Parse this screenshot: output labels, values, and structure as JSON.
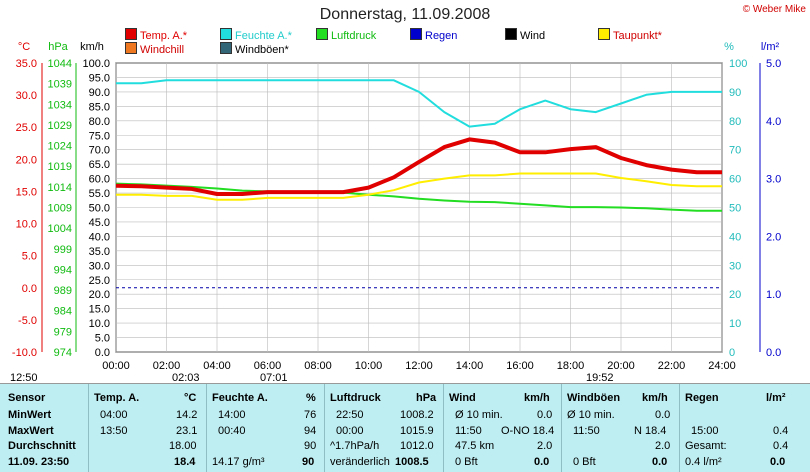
{
  "header": {
    "title": "Donnerstag, 11.09.2008",
    "copyright": "© Weber Mike"
  },
  "legend": [
    {
      "label": "Temp. A.*",
      "color": "#e00000"
    },
    {
      "label": "Feuchte A.*",
      "color": "#22dddd"
    },
    {
      "label": "Luftdruck",
      "color": "#22dd22"
    },
    {
      "label": "Regen",
      "color": "#0000cc"
    },
    {
      "label": "Wind",
      "color": "#000000"
    },
    {
      "label": "Taupunkt*",
      "color": "#ffee00"
    },
    {
      "label": "Windchill",
      "color": "#ee7722"
    },
    {
      "label": "Windböen*",
      "color": "#336677"
    }
  ],
  "axes": {
    "temp_unit": "°C",
    "press_unit": "hPa",
    "wind_unit": "km/h",
    "hum_unit": "%",
    "rain_unit": "l/m²",
    "temp_ticks": [
      "35.0",
      "30.0",
      "25.0",
      "20.0",
      "15.0",
      "10.0",
      "5.0",
      "0.0",
      "-5.0",
      "-10.0"
    ],
    "press_ticks": [
      "1044",
      "1039",
      "1034",
      "1029",
      "1024",
      "1019",
      "1014",
      "1009",
      "1004",
      "999",
      "994",
      "989",
      "984",
      "979",
      "974"
    ],
    "wind_ticks": [
      "100.0",
      "95.0",
      "90.0",
      "85.0",
      "80.0",
      "75.0",
      "70.0",
      "65.0",
      "60.0",
      "55.0",
      "50.0",
      "45.0",
      "40.0",
      "35.0",
      "30.0",
      "25.0",
      "20.0",
      "15.0",
      "10.0",
      "5.0",
      "0.0"
    ],
    "hum_ticks": [
      "100",
      "90",
      "80",
      "70",
      "60",
      "50",
      "40",
      "30",
      "20",
      "10",
      "0"
    ],
    "rain_ticks": [
      "5.0",
      "4.0",
      "3.0",
      "2.0",
      "1.0",
      "0.0"
    ],
    "x_ticks": [
      "00:00",
      "02:00",
      "04:00",
      "06:00",
      "08:00",
      "10:00",
      "12:00",
      "14:00",
      "16:00",
      "18:00",
      "20:00",
      "22:00",
      "24:00"
    ]
  },
  "timestrip": {
    "sunrise": "12:50",
    "t1": "02:03",
    "t2": "07:01",
    "t3": "19:52"
  },
  "chart_data": {
    "type": "line",
    "x": [
      0,
      1,
      2,
      3,
      4,
      5,
      6,
      7,
      8,
      9,
      10,
      11,
      12,
      13,
      14,
      15,
      16,
      17,
      18,
      19,
      20,
      21,
      22,
      23,
      24
    ],
    "x_unit": "hour",
    "series": [
      {
        "name": "Temp. A.*",
        "axis": "temp",
        "values": [
          15.9,
          15.8,
          15.6,
          15.4,
          14.6,
          14.6,
          14.9,
          14.9,
          14.9,
          14.9,
          15.6,
          17.2,
          19.6,
          21.9,
          23.1,
          22.6,
          21.1,
          21.1,
          21.6,
          21.9,
          20.2,
          19.1,
          18.4,
          18.0,
          18.0
        ]
      },
      {
        "name": "Feuchte A.*",
        "axis": "hum",
        "values": [
          93,
          93,
          94,
          94,
          94,
          94,
          94,
          94,
          94,
          94,
          94,
          94,
          90,
          83,
          78,
          79,
          84,
          87,
          84,
          83,
          86,
          89,
          90,
          90,
          90
        ]
      },
      {
        "name": "Luftdruck",
        "axis": "press",
        "values": [
          1014.8,
          1014.6,
          1014.3,
          1014.0,
          1013.6,
          1013.1,
          1012.9,
          1012.8,
          1012.9,
          1012.6,
          1012.1,
          1011.7,
          1011.1,
          1010.7,
          1010.4,
          1010.3,
          1009.9,
          1009.5,
          1009.1,
          1009.1,
          1009.0,
          1008.8,
          1008.5,
          1008.2,
          1008.2
        ]
      },
      {
        "name": "Taupunkt*",
        "axis": "temp",
        "values": [
          14.5,
          14.5,
          14.3,
          14.3,
          13.7,
          13.7,
          14.0,
          14.0,
          14.0,
          14.0,
          14.5,
          15.2,
          16.4,
          17.0,
          17.5,
          17.5,
          17.8,
          17.8,
          17.8,
          17.8,
          17.1,
          16.6,
          16.0,
          15.8,
          15.8
        ]
      }
    ],
    "ylim_temp": [
      -10,
      35
    ],
    "ylim_press": [
      974,
      1044
    ],
    "ylim_wind": [
      0,
      100
    ],
    "ylim_hum": [
      0,
      100
    ],
    "ylim_rain": [
      0,
      5
    ]
  },
  "stats": {
    "row_labels": [
      "Sensor",
      "MinWert",
      "MaxWert",
      "Durchschnitt",
      "11.09. 23:50"
    ],
    "temp": {
      "head": "Temp. A.",
      "unit": "°C",
      "min_time": "04:00",
      "min": "14.2",
      "max_time": "13:50",
      "max": "23.1",
      "avg": "18.00",
      "cur": "18.4"
    },
    "hum": {
      "head": "Feuchte A.",
      "unit": "%",
      "min_time": "14:00",
      "min": "76",
      "max_time": "00:40",
      "max": "94",
      "avg": "90",
      "abs": "14.17 g/m³",
      "cur": "90"
    },
    "press": {
      "head": "Luftdruck",
      "unit": "hPa",
      "min_time": "22:50",
      "min": "1008.2",
      "max_time": "00:00",
      "max": "1015.9",
      "trend": "^1.7hPa/h",
      "avg": "1012.0",
      "state": "veränderlich",
      "cur": "1008.5"
    },
    "wind": {
      "head": "Wind",
      "unit": "km/h",
      "r1a": "Ø 10 min.",
      "r1b": "0.0",
      "r2a": "11:50",
      "r2b": "O-NO 18.4",
      "r3a": "47.5 km",
      "r3b": "2.0",
      "r4a": "0 Bft",
      "r4b": "0.0"
    },
    "gust": {
      "head": "Windböen",
      "unit": "km/h",
      "r1a": "Ø 10 min.",
      "r1b": "0.0",
      "r2a": "11:50",
      "r2b": "N 18.4",
      "r3b": "2.0",
      "r4a": "0 Bft",
      "r4b": "0.0"
    },
    "rain": {
      "head": "Regen",
      "unit": "l/m²",
      "r2a": "15:00",
      "r2b": "0.4",
      "r3a": "Gesamt:",
      "r3b": "0.4",
      "r4a": "0.4 l/m²",
      "r4b": "0.0"
    }
  }
}
